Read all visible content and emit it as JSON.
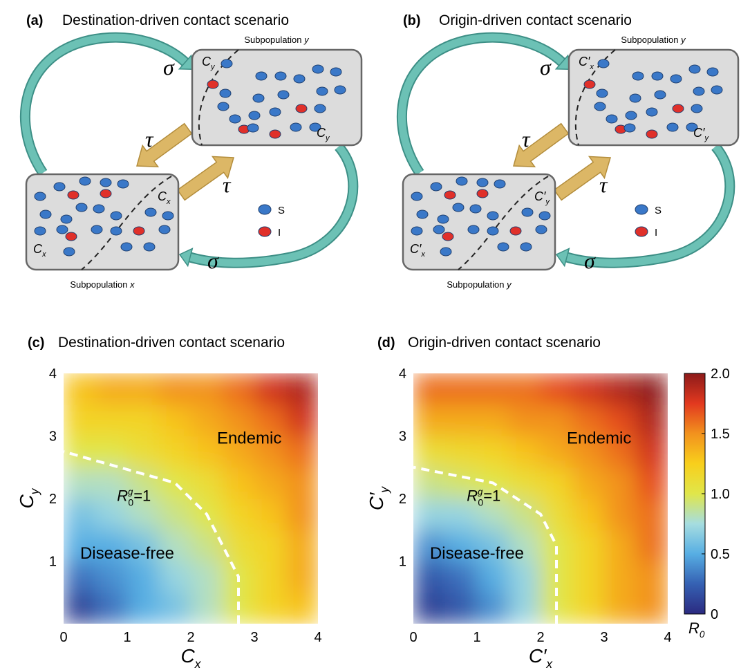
{
  "diagrams": [
    {
      "panel": "(a)",
      "title": "Destination-driven contact scenario",
      "top_caption": {
        "text": "Subpopulation",
        "var": "y"
      },
      "bottom_caption": {
        "text": "Subpopulation",
        "var": "x"
      },
      "top_labels": [
        {
          "main": "C",
          "sub": "y"
        },
        {
          "main": "C",
          "sub": "y"
        }
      ],
      "bottom_labels": [
        {
          "main": "C",
          "sub": "x"
        },
        {
          "main": "C",
          "sub": "x"
        }
      ],
      "sigma": "σ",
      "tau": "τ",
      "legend": [
        "S",
        "I"
      ]
    },
    {
      "panel": "(b)",
      "title": "Origin-driven contact scenario",
      "top_caption": {
        "text": "Subpopulation",
        "var": "y"
      },
      "bottom_caption": {
        "text": "Subpopulation",
        "var": "y"
      },
      "top_labels": [
        {
          "main": "C′",
          "sub": "x"
        },
        {
          "main": "C′",
          "sub": "y"
        }
      ],
      "bottom_labels": [
        {
          "main": "C′",
          "sub": "y"
        },
        {
          "main": "C′",
          "sub": "x"
        }
      ],
      "sigma": "σ",
      "tau": "τ",
      "legend": [
        "S",
        "I"
      ]
    }
  ],
  "chart_data": [
    {
      "type": "heatmap",
      "panel": "(c)",
      "title": "Destination-driven contact scenario",
      "xlabel": {
        "main": "C",
        "sub": "x"
      },
      "ylabel": {
        "main": "C",
        "sub": "y"
      },
      "xlim": [
        0,
        4
      ],
      "ylim": [
        0,
        4
      ],
      "xticks": [
        0,
        1,
        2,
        3,
        4
      ],
      "yticks": [
        1,
        2,
        3,
        4
      ],
      "zlim": [
        0,
        2
      ],
      "colormap": [
        "#2b2a80",
        "#3561b3",
        "#57aee3",
        "#a6dde0",
        "#e0e64a",
        "#f8cf1c",
        "#f2921e",
        "#e2391f",
        "#8c1a1a"
      ],
      "values": [
        [
          0.1,
          0.3,
          0.5,
          0.6,
          0.8,
          1.0,
          1.2,
          1.3
        ],
        [
          0.3,
          0.4,
          0.5,
          0.7,
          0.8,
          1.0,
          1.2,
          1.4
        ],
        [
          0.5,
          0.5,
          0.6,
          0.8,
          0.9,
          1.1,
          1.2,
          1.4
        ],
        [
          0.6,
          0.7,
          0.8,
          0.9,
          1.0,
          1.2,
          1.3,
          1.5
        ],
        [
          0.8,
          0.8,
          0.9,
          1.0,
          1.1,
          1.3,
          1.4,
          1.5
        ],
        [
          1.0,
          1.0,
          1.1,
          1.2,
          1.3,
          1.4,
          1.5,
          1.6
        ],
        [
          1.2,
          1.2,
          1.2,
          1.3,
          1.4,
          1.5,
          1.6,
          1.8
        ],
        [
          1.3,
          1.4,
          1.4,
          1.5,
          1.5,
          1.6,
          1.8,
          1.9
        ]
      ],
      "contour": 1,
      "contour_label": {
        "main": "R",
        "sub": "0",
        "sup": "g",
        "rest": "=1"
      },
      "annotations": [
        "Endemic",
        "Disease-free"
      ]
    },
    {
      "type": "heatmap",
      "panel": "(d)",
      "title": "Origin-driven contact scenario",
      "xlabel": {
        "main": "C′",
        "sub": "x"
      },
      "ylabel": {
        "main": "C′",
        "sub": "y"
      },
      "xlim": [
        0,
        4
      ],
      "ylim": [
        0,
        4
      ],
      "xticks": [
        0,
        1,
        2,
        3,
        4
      ],
      "yticks": [
        1,
        2,
        3,
        4
      ],
      "zlim": [
        0,
        2
      ],
      "colormap": [
        "#2b2a80",
        "#3561b3",
        "#57aee3",
        "#a6dde0",
        "#e0e64a",
        "#f8cf1c",
        "#f2921e",
        "#e2391f",
        "#8c1a1a"
      ],
      "values": [
        [
          0.1,
          0.2,
          0.4,
          0.7,
          1.0,
          1.2,
          1.4,
          1.5
        ],
        [
          0.2,
          0.3,
          0.5,
          0.7,
          1.0,
          1.2,
          1.4,
          1.5
        ],
        [
          0.4,
          0.5,
          0.6,
          0.8,
          1.0,
          1.2,
          1.4,
          1.6
        ],
        [
          0.7,
          0.7,
          0.8,
          0.9,
          1.1,
          1.3,
          1.5,
          1.6
        ],
        [
          0.9,
          0.95,
          1.0,
          1.1,
          1.2,
          1.4,
          1.5,
          1.7
        ],
        [
          1.1,
          1.15,
          1.2,
          1.3,
          1.4,
          1.5,
          1.6,
          1.8
        ],
        [
          1.4,
          1.4,
          1.4,
          1.5,
          1.5,
          1.6,
          1.7,
          1.9
        ],
        [
          1.6,
          1.6,
          1.6,
          1.6,
          1.7,
          1.8,
          1.9,
          2.0
        ]
      ],
      "contour": 1,
      "contour_label": {
        "main": "R",
        "sub": "0",
        "sup": "g",
        "rest": "=1"
      },
      "annotations": [
        "Endemic",
        "Disease-free"
      ],
      "colorbar": {
        "label": {
          "main": "R",
          "sub": "0"
        },
        "ticks": [
          0,
          0.5,
          {
            "value": 1,
            "label": "1.0"
          },
          1.5,
          {
            "value": 2,
            "label": "2.0"
          }
        ]
      }
    }
  ]
}
